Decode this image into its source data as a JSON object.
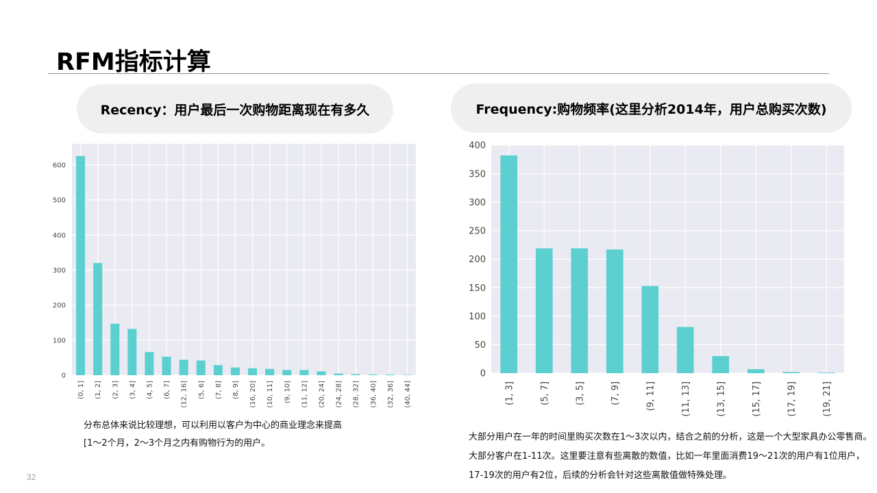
{
  "slide": {
    "title": "RFM指标计算",
    "page_number": "32"
  },
  "left_panel": {
    "heading": "Recency：用户最后一次购物距离现在有多久",
    "note_line1": "分布总体来说比较理想，可以利用以客户为中心的商业理念来提高",
    "note_line2": "[1～2个月，2～3个月之内有购物行为的用户。"
  },
  "right_panel": {
    "heading": "Frequency:购物频率(这里分析2014年，用户总购买次数)",
    "note": "大部分用户在一年的时间里购买次数在1～3次以内，结合之前的分析，这是一个大型家具办公零售商。大部分客户在1-11次。这里要注意有些离散的数值，比如一年里面消费19～21次的用户有1位用户，17-19次的用户有2位，后续的分析会针对这些离散值做特殊处理。"
  },
  "colors": {
    "bar": "#5cd0d0",
    "plot_bg": "#eaeaf2",
    "grid": "#ffffff"
  },
  "chart_data": [
    {
      "type": "bar",
      "categories": [
        "(0, 1]",
        "(1, 2]",
        "(2, 3]",
        "(3, 4]",
        "(4, 5]",
        "(6, 7]",
        "(12, 16]",
        "(5, 6]",
        "(7, 8]",
        "(8, 9]",
        "(16, 20]",
        "(10, 11]",
        "(9, 10]",
        "(11, 12]",
        "(20, 24]",
        "(24, 28]",
        "(28, 32]",
        "(36, 40]",
        "(32, 36]",
        "(40, 44]"
      ],
      "values": [
        625,
        320,
        147,
        132,
        66,
        53,
        44,
        42,
        29,
        22,
        20,
        18,
        15,
        15,
        11,
        5,
        3,
        2,
        2,
        1
      ],
      "ylim": [
        0,
        660
      ],
      "yticks": [
        0,
        100,
        200,
        300,
        400,
        500,
        600
      ],
      "grid": true
    },
    {
      "type": "bar",
      "categories": [
        "(1,  3]",
        "(5,  7]",
        "(3,  5]",
        "(7,  9]",
        "(9,  11]",
        "(11,  13]",
        "(13,  15]",
        "(15,  17]",
        "(17,  19]",
        "(19,  21]"
      ],
      "values": [
        382,
        219,
        219,
        217,
        153,
        81,
        30,
        7,
        2,
        1
      ],
      "ylim": [
        0,
        400
      ],
      "yticks": [
        0,
        50,
        100,
        150,
        200,
        250,
        300,
        350,
        400
      ],
      "grid": true
    }
  ]
}
